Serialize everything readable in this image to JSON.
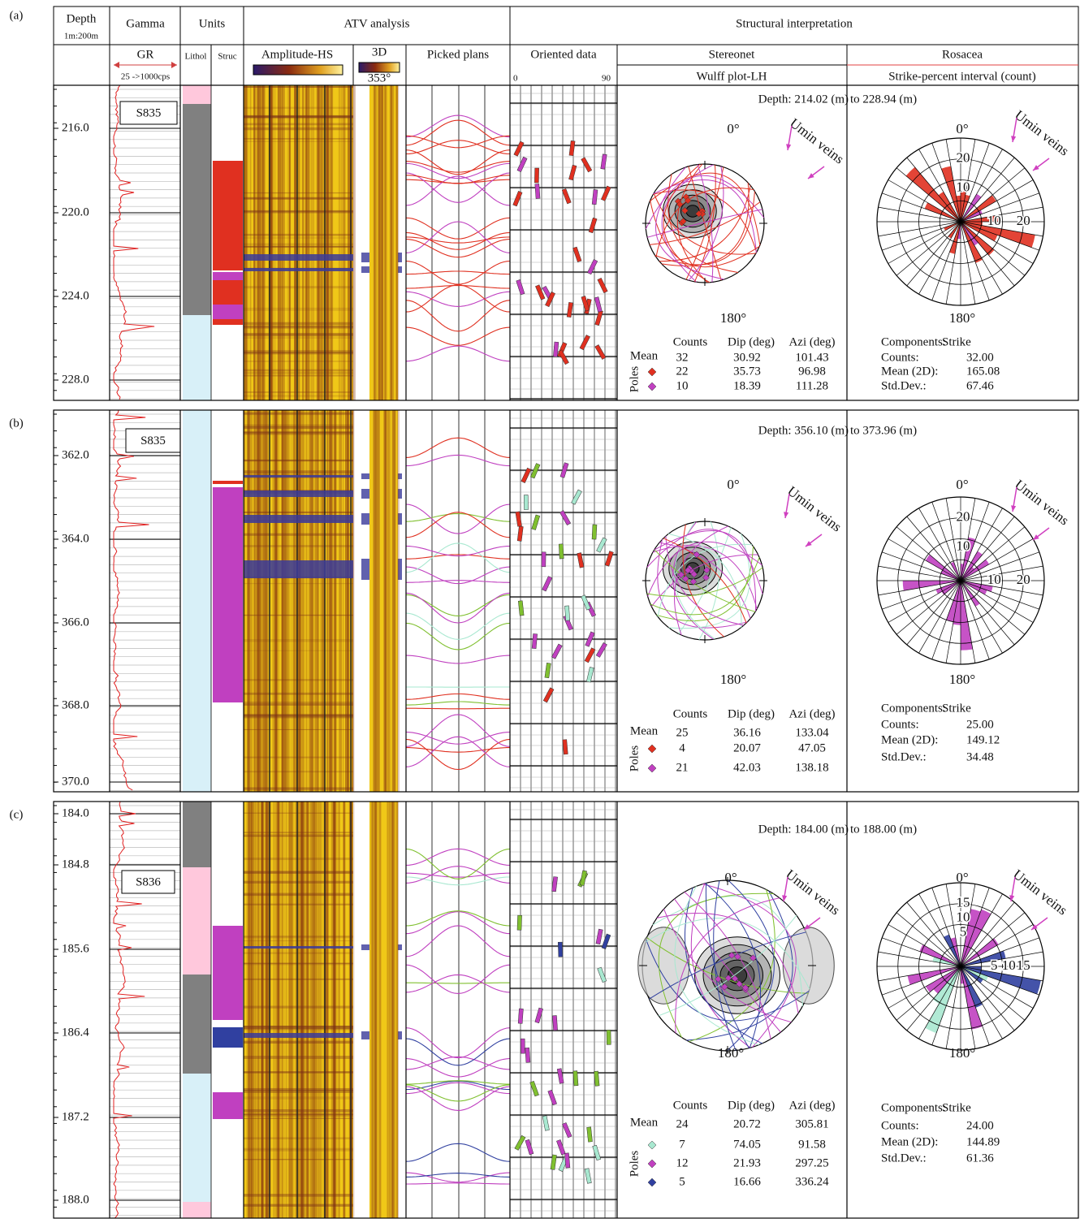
{
  "header": {
    "depth": "Depth",
    "scale": "1m:200m",
    "gamma": "Gamma",
    "units": "Units",
    "atv": "ATV analysis",
    "structural": "Structural interpretation",
    "gr": "GR",
    "gr_range": "25 ->1000cps",
    "lithol": "Lithol",
    "struc": "Struc",
    "amplitude": "Amplitude-HS",
    "three_d": "3D",
    "azimuth": "353°",
    "picked": "Picked plans",
    "oriented": "Oriented data",
    "oriented_min": "0",
    "oriented_max": "90",
    "stereonet": "Stereonet",
    "wulff": "Wulff plot-LH",
    "rosacea": "Rosacea",
    "strike_interval": "Strike-percent interval (count)"
  },
  "panels": [
    {
      "label": "(a)",
      "well": "S835",
      "depth_ticks": [
        "216.0",
        "220.0",
        "224.0",
        "228.0"
      ],
      "depth_from": "Depth: 214.02 (m)",
      "depth_to": "to 228.94 (m)",
      "stereonet_labels": [
        "0°",
        "180°"
      ],
      "stereonet_veins": "Umin veins",
      "rose_labels": [
        "0°",
        "180°"
      ],
      "rose_veins": "Umin veins",
      "rose_ticks_n": [
        "20",
        "10"
      ],
      "rose_ticks_e": [
        "10",
        "20"
      ],
      "stat_headers": [
        "Counts",
        "Dip (deg)",
        "Azi (deg)"
      ],
      "mean_label": "Mean",
      "poles_label": "Poles",
      "stat_rows": [
        [
          "32",
          "30.92",
          "101.43"
        ],
        [
          "22",
          "35.73",
          "96.98"
        ],
        [
          "10",
          "18.39",
          "111.28"
        ]
      ],
      "pole_colors": [
        "#e03020",
        "#c040c0"
      ],
      "rose_stats": [
        [
          "Components:",
          "Strike"
        ],
        [
          "Counts:",
          "32.00"
        ],
        [
          "Mean (2D):",
          "165.08"
        ],
        [
          "Std.Dev.:",
          "67.46"
        ]
      ]
    },
    {
      "label": "(b)",
      "well": "S835",
      "depth_ticks": [
        "362.0",
        "364.0",
        "366.0",
        "368.0",
        "370.0"
      ],
      "depth_from": "Depth: 356.10 (m)",
      "depth_to": "to 373.96 (m)",
      "stereonet_labels": [
        "0°",
        "180°"
      ],
      "stereonet_veins": "Umin veins",
      "rose_labels": [
        "0°",
        "180°"
      ],
      "rose_veins": "Umin veins",
      "rose_ticks_n": [
        "20",
        "10"
      ],
      "rose_ticks_e": [
        "10",
        "20"
      ],
      "stat_headers": [
        "Counts",
        "Dip (deg)",
        "Azi (deg)"
      ],
      "mean_label": "Mean",
      "poles_label": "Poles",
      "stat_rows": [
        [
          "25",
          "36.16",
          "133.04"
        ],
        [
          "4",
          "20.07",
          "47.05"
        ],
        [
          "21",
          "42.03",
          "138.18"
        ]
      ],
      "pole_colors": [
        "#e03020",
        "#c040c0"
      ],
      "rose_stats": [
        [
          "Components:",
          "Strike"
        ],
        [
          "Counts:",
          "25.00"
        ],
        [
          "Mean (2D):",
          "149.12"
        ],
        [
          "Std.Dev.:",
          "34.48"
        ]
      ]
    },
    {
      "label": "(c)",
      "well": "S836",
      "depth_ticks": [
        "184.0",
        "184.8",
        "185.6",
        "186.4",
        "187.2",
        "188.0"
      ],
      "depth_from": "Depth: 184.00 (m)",
      "depth_to": "to 188.00 (m)",
      "stereonet_labels": [
        "0°",
        "180°"
      ],
      "stereonet_veins": "Umin veins",
      "rose_labels": [
        "0°",
        "180°"
      ],
      "rose_veins": "Umin veins",
      "rose_ticks_n": [
        "15",
        "10",
        "5"
      ],
      "rose_ticks_e": [
        "5",
        "10",
        "15"
      ],
      "stat_headers": [
        "Counts",
        "Dip (deg)",
        "Azi (deg)"
      ],
      "mean_label": "Mean",
      "poles_label": "Poles",
      "stat_rows": [
        [
          "24",
          "20.72",
          "305.81"
        ],
        [
          "7",
          "74.05",
          "91.58"
        ],
        [
          "12",
          "21.93",
          "297.25"
        ],
        [
          "5",
          "16.66",
          "336.24"
        ]
      ],
      "pole_colors": [
        "#a8e8d0",
        "#c040c0",
        "#3040a0"
      ],
      "rose_stats": [
        [
          "Components:",
          "Strike"
        ],
        [
          "Counts:",
          "24.00"
        ],
        [
          "Mean (2D):",
          "144.89"
        ],
        [
          "Std.Dev.:",
          "61.36"
        ]
      ]
    }
  ]
}
